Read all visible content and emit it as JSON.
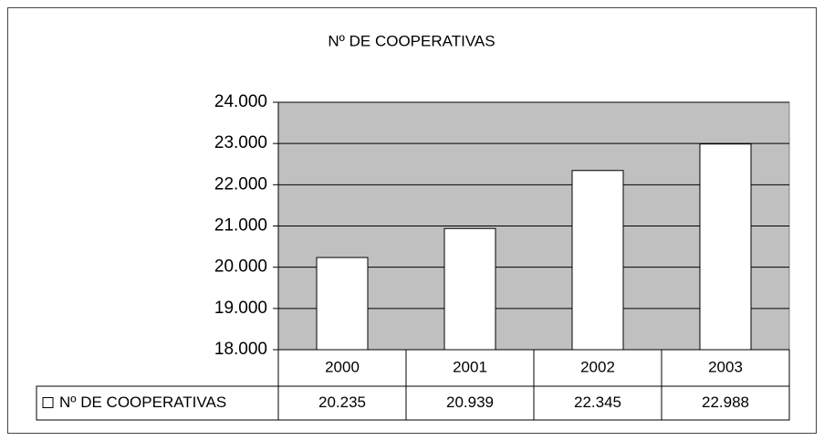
{
  "chart_data": {
    "type": "bar",
    "title": "Nº DE COOPERATIVAS",
    "categories": [
      "2000",
      "2001",
      "2002",
      "2003"
    ],
    "series": [
      {
        "name": "Nº DE COOPERATIVAS",
        "color": "#ffffff",
        "values": [
          20235,
          20939,
          22345,
          22988
        ],
        "value_labels": [
          "20.235",
          "20.939",
          "22.345",
          "22.988"
        ]
      }
    ],
    "ylim": [
      18000,
      24000
    ],
    "yticks": [
      {
        "value": 18000,
        "label": "18.000"
      },
      {
        "value": 19000,
        "label": "19.000"
      },
      {
        "value": 20000,
        "label": "20.000"
      },
      {
        "value": 21000,
        "label": "21.000"
      },
      {
        "value": 22000,
        "label": "22.000"
      },
      {
        "value": 23000,
        "label": "23.000"
      },
      {
        "value": 24000,
        "label": "24.000"
      }
    ],
    "grid": true,
    "plot_background": "#c0c0c0",
    "data_table": true
  }
}
